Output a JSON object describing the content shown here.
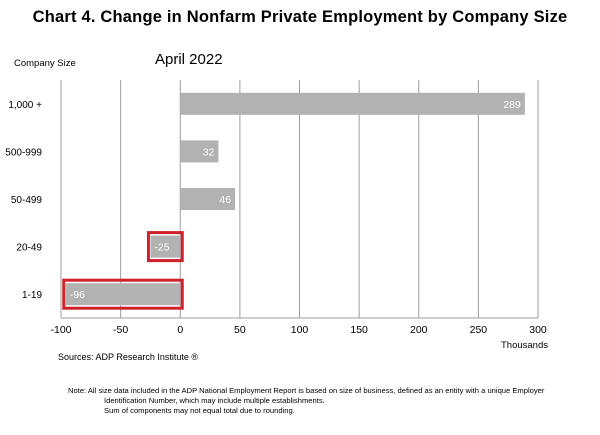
{
  "page": {
    "title": "Chart 4. Change in Nonfarm Private Employment by Company Size",
    "source": "Sources: ADP Research Institute ®",
    "notes": [
      "Note:  All size data included in the ADP National Employment Report is based on size of business, defined as an entity with a unique Employer",
      "Identification Number, which may include multiple establishments.",
      "Sum of components may not equal total due to rounding."
    ]
  },
  "chart_data": {
    "type": "bar",
    "orientation": "horizontal",
    "title": "Chart 4. Change in Nonfarm Private Employment by Company Size",
    "subtitle": "April 2022",
    "ylabel": "Company Size",
    "xlabel": "Thousands",
    "categories": [
      "1,000 +",
      "500-999",
      "50-499",
      "20-49",
      "1-19"
    ],
    "values": [
      289,
      32,
      46,
      -25,
      -96
    ],
    "data_labels": [
      "289",
      "32",
      "46",
      "-25",
      "-96"
    ],
    "highlighted": [
      false,
      false,
      false,
      true,
      true
    ],
    "xlim": [
      -100,
      300
    ],
    "xticks": [
      -100,
      -50,
      0,
      50,
      100,
      150,
      200,
      250,
      300
    ],
    "grid": "vertical",
    "legend": "none",
    "colors": {
      "bar": "#b2b2b2",
      "highlight_border": "#d0202a",
      "grid": "#9e9e9e",
      "data_label": "#ffffff"
    }
  }
}
